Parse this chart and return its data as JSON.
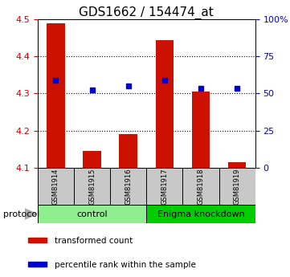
{
  "title": "GDS1662 / 154474_at",
  "samples": [
    "GSM81914",
    "GSM81915",
    "GSM81916",
    "GSM81917",
    "GSM81918",
    "GSM81919"
  ],
  "red_values": [
    4.49,
    4.145,
    4.19,
    4.445,
    4.305,
    4.115
  ],
  "blue_values": [
    4.335,
    4.31,
    4.32,
    4.335,
    4.315,
    4.315
  ],
  "ylim": [
    4.1,
    4.5
  ],
  "yticks": [
    4.1,
    4.2,
    4.3,
    4.4,
    4.5
  ],
  "right_yticks": [
    0,
    25,
    50,
    75,
    100
  ],
  "right_yticklabels": [
    "0",
    "25",
    "50",
    "75",
    "100%"
  ],
  "red_color": "#CC1100",
  "blue_color": "#0000CC",
  "left_tick_color": "#CC0000",
  "right_tick_color": "#0000CC",
  "control_color": "#90EE90",
  "enigma_color": "#00CC00",
  "sample_box_color": "#C8C8C8",
  "title_fontsize": 11,
  "tick_fontsize": 8,
  "sample_fontsize": 6,
  "group_fontsize": 8,
  "legend_fontsize": 7.5,
  "protocol_fontsize": 8
}
